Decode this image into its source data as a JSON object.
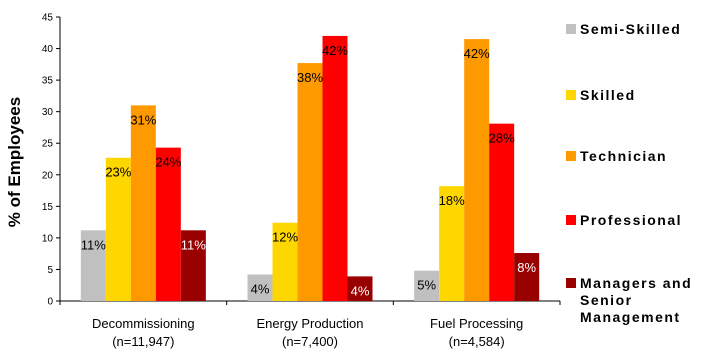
{
  "chart_data": {
    "type": "bar",
    "title": "",
    "ylabel": "% of Employees",
    "xlabel": "",
    "ylim": [
      0,
      45
    ],
    "yticks": [
      0,
      5,
      10,
      15,
      20,
      25,
      30,
      35,
      40,
      45
    ],
    "categories": [
      {
        "name": "Decommissioning",
        "n": "(n=11,947)"
      },
      {
        "name": "Energy Production",
        "n": "(n=7,400)"
      },
      {
        "name": "Fuel Processing",
        "n": "(n=4,584)"
      }
    ],
    "series": [
      {
        "name": "Semi-Skilled",
        "color": "#c0c0c0",
        "label_color": "#000000",
        "values": [
          11.2,
          4.2,
          4.8
        ],
        "labels": [
          "11%",
          "4%",
          "5%"
        ]
      },
      {
        "name": "Skilled",
        "color": "#ffd700",
        "label_color": "#000000",
        "values": [
          22.7,
          12.4,
          18.2
        ],
        "labels": [
          "23%",
          "12%",
          "18%"
        ]
      },
      {
        "name": "Technician",
        "color": "#ff9900",
        "label_color": "#000000",
        "values": [
          31.0,
          37.7,
          41.5
        ],
        "labels": [
          "31%",
          "38%",
          "42%"
        ]
      },
      {
        "name": "Professional",
        "color": "#ff0000",
        "label_color": "#000000",
        "values": [
          24.3,
          42.0,
          28.1
        ],
        "labels": [
          "24%",
          "42%",
          "28%"
        ]
      },
      {
        "name": "Managers and\nSenior\nManagement",
        "color": "#990000",
        "label_color": "#ffffff",
        "values": [
          11.2,
          3.9,
          7.6
        ],
        "labels": [
          "11%",
          "4%",
          "8%"
        ]
      }
    ],
    "legend_position": "right",
    "grid": false
  }
}
